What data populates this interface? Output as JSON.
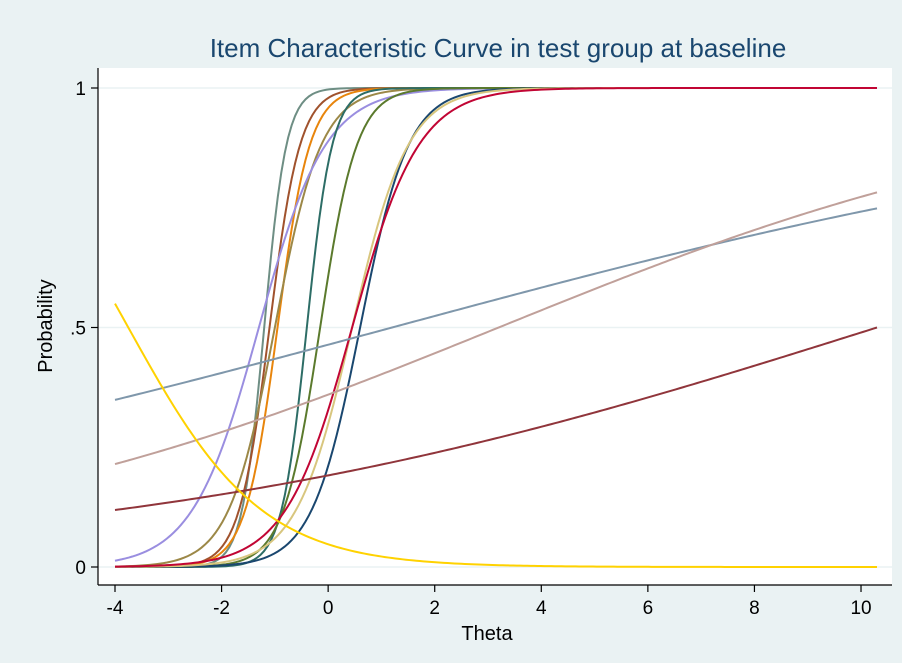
{
  "chart_data": {
    "type": "line",
    "title": "Item Characteristic Curve in test group at baseline",
    "xlabel": "Theta",
    "ylabel": "Probability",
    "xlim": [
      -4,
      10.3
    ],
    "ylim": [
      0,
      1
    ],
    "x_ticks": [
      -4,
      -2,
      0,
      2,
      4,
      6,
      8,
      10
    ],
    "x_tick_labels": [
      "-4",
      "-2",
      "0",
      "2",
      "4",
      "6",
      "8",
      "10"
    ],
    "y_ticks": [
      0,
      0.5,
      1
    ],
    "y_tick_labels": [
      "0",
      ".5",
      "1"
    ],
    "grid": "horizontal",
    "background_color": "#eaf2f3",
    "plot_background_color": "#ffffff",
    "title_color": "#1a476f",
    "series": [
      {
        "model": "logistic",
        "a": 4.8,
        "b": -1.2,
        "color": "#6e8e84"
      },
      {
        "model": "logistic",
        "a": 3.5,
        "b": -1.1,
        "color": "#a0522d"
      },
      {
        "model": "logistic",
        "a": 3.3,
        "b": -0.95,
        "color": "#e8850c"
      },
      {
        "model": "logistic",
        "a": 2.3,
        "b": -1.0,
        "color": "#9c8847"
      },
      {
        "model": "logistic",
        "a": 1.6,
        "b": -1.3,
        "color": "#9a8ee0"
      },
      {
        "model": "logistic",
        "a": 4.2,
        "b": -0.4,
        "color": "#2d6d66"
      },
      {
        "model": "logistic",
        "a": 2.9,
        "b": -0.15,
        "color": "#5b7a2d"
      },
      {
        "model": "logistic",
        "a": 2.2,
        "b": 0.6,
        "color": "#1a476f"
      },
      {
        "model": "logistic",
        "a": 1.9,
        "b": 0.45,
        "color": "#d8c67e"
      },
      {
        "model": "logistic",
        "a": 1.6,
        "b": 0.45,
        "color": "#c10534"
      },
      {
        "model": "logistic",
        "a": 0.12,
        "b": 1.2,
        "color": "#7f97ab"
      },
      {
        "model": "logistic",
        "a": 0.18,
        "b": 3.2,
        "color": "#c0a09a"
      },
      {
        "model": "logistic",
        "a": 0.14,
        "b": 10.3,
        "color": "#90353b"
      },
      {
        "model": "logistic",
        "a": -0.8,
        "b": -3.75,
        "color": "#ffd200"
      }
    ]
  }
}
